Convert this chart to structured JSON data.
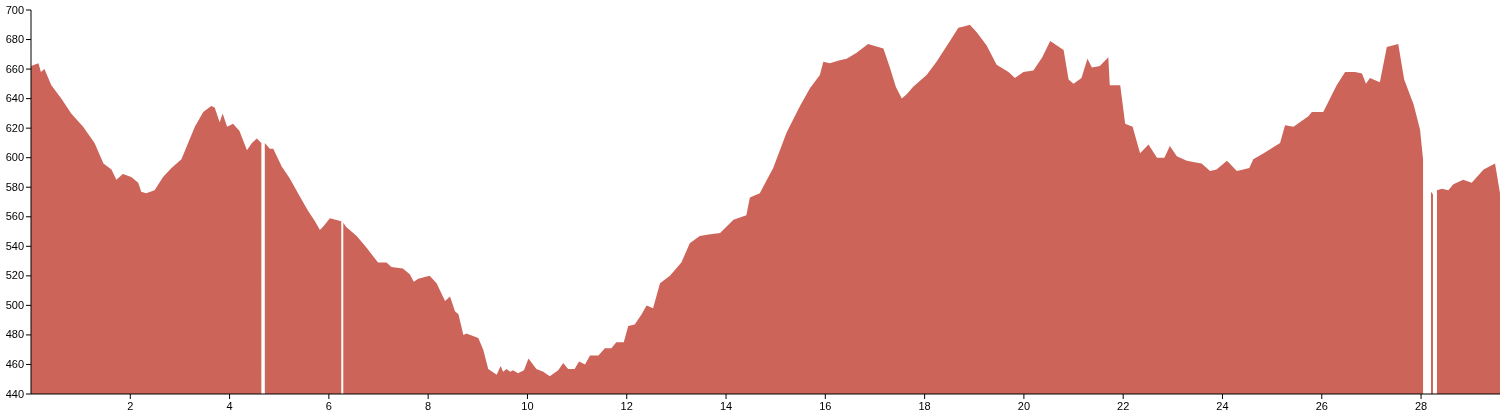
{
  "chart_data": {
    "type": "area",
    "color": "#cd645a",
    "x": [
      0,
      0.15,
      0.2,
      0.27,
      0.41,
      0.61,
      0.81,
      1.05,
      1.28,
      1.46,
      1.62,
      1.72,
      1.85,
      2.02,
      2.16,
      2.22,
      2.32,
      2.49,
      2.66,
      2.83,
      3.03,
      3.3,
      3.47,
      3.63,
      3.7,
      3.8,
      3.86,
      3.95,
      4.07,
      4.2,
      4.35,
      4.45,
      4.55,
      4.64,
      4.675,
      4.71,
      4.81,
      4.88,
      5.05,
      5.21,
      5.41,
      5.58,
      5.72,
      5.82,
      5.9,
      6.02,
      6.25,
      6.27,
      6.29,
      6.35,
      6.56,
      6.76,
      6.99,
      7.16,
      7.26,
      7.49,
      7.63,
      7.71,
      7.8,
      8.03,
      8.17,
      8.34,
      8.44,
      8.54,
      8.61,
      8.71,
      8.77,
      9.01,
      9.11,
      9.21,
      9.38,
      9.46,
      9.51,
      9.58,
      9.65,
      9.71,
      9.81,
      9.93,
      10.02,
      10.18,
      10.32,
      10.45,
      10.62,
      10.72,
      10.82,
      10.95,
      11.04,
      11.16,
      11.26,
      11.43,
      11.56,
      11.69,
      11.79,
      11.94,
      12.03,
      12.16,
      12.3,
      12.4,
      12.53,
      12.67,
      12.87,
      13.1,
      13.27,
      13.47,
      13.65,
      13.88,
      14.15,
      14.41,
      14.48,
      14.68,
      14.95,
      15.22,
      15.49,
      15.69,
      15.89,
      15.96,
      16.09,
      16.29,
      16.43,
      16.63,
      16.86,
      17.17,
      17.3,
      17.42,
      17.54,
      17.64,
      17.77,
      18.04,
      18.24,
      18.51,
      18.68,
      18.81,
      18.91,
      19.05,
      19.25,
      19.45,
      19.69,
      19.82,
      19.99,
      20.19,
      20.37,
      20.53,
      20.8,
      20.9,
      21,
      21.16,
      21.28,
      21.37,
      21.53,
      21.7,
      21.73,
      21.94,
      22.04,
      22.19,
      22.34,
      22.51,
      22.68,
      22.83,
      22.94,
      23.08,
      23.28,
      23.41,
      23.58,
      23.75,
      23.88,
      24.09,
      24.29,
      24.42,
      24.54,
      24.62,
      24.83,
      25.16,
      25.26,
      25.43,
      25.73,
      25.8,
      26.03,
      26.3,
      26.47,
      26.67,
      26.81,
      26.89,
      26.97,
      27.17,
      27.31,
      27.54,
      27.66,
      27.85,
      27.98,
      28.04,
      28.1,
      28.2,
      28.24,
      28.28,
      28.32,
      28.42,
      28.55,
      28.65,
      28.85,
      29.02,
      29.26,
      29.49,
      29.59
    ],
    "values": [
      662,
      664,
      658,
      660,
      649,
      640,
      630,
      621,
      610,
      596,
      592,
      585,
      589,
      587,
      583,
      577,
      576,
      578,
      587,
      593,
      599,
      621,
      631,
      635,
      634,
      624,
      630,
      621,
      623,
      618,
      605,
      610,
      613,
      610,
      null,
      610,
      606,
      606,
      594,
      586,
      574,
      564,
      557,
      551,
      554,
      559,
      557,
      null,
      556,
      553,
      547,
      539,
      529,
      529,
      526,
      525,
      521,
      516,
      518,
      520,
      515,
      503,
      506,
      496,
      494,
      480,
      481,
      478,
      470,
      457,
      453,
      459,
      455,
      457,
      455,
      456,
      454,
      456,
      464,
      457,
      455,
      452,
      456,
      461,
      457,
      457,
      462,
      460,
      466,
      466,
      471,
      471,
      475,
      475,
      486,
      487,
      494,
      500,
      498,
      515,
      520,
      529,
      542,
      547,
      548,
      549,
      558,
      561,
      573,
      576,
      593,
      617,
      635,
      647,
      656,
      665,
      664,
      666,
      667,
      671,
      677,
      674,
      661,
      648,
      640,
      643,
      648,
      656,
      665,
      679,
      688,
      689,
      690,
      685,
      676,
      663,
      658,
      654,
      658,
      659,
      668,
      679,
      673,
      653,
      650,
      654,
      667,
      661,
      662,
      668,
      649,
      649,
      623,
      621,
      603,
      609,
      600,
      600,
      608,
      601,
      598,
      597,
      596,
      591,
      592,
      598,
      591,
      592,
      593,
      599,
      603,
      610,
      622,
      621,
      628,
      631,
      631,
      649,
      658,
      658,
      657,
      650,
      654,
      651,
      675,
      677,
      653,
      636,
      619,
      599,
      null,
      577,
      575,
      null,
      578,
      579,
      578,
      582,
      585,
      583,
      592,
      596,
      576
    ],
    "xlim": [
      0,
      29.59
    ],
    "ylim": [
      440,
      700
    ],
    "xticks": [
      2,
      4,
      6,
      8,
      10,
      12,
      14,
      16,
      18,
      20,
      22,
      24,
      26,
      28
    ],
    "yticks": [
      440,
      460,
      480,
      500,
      520,
      540,
      560,
      580,
      600,
      620,
      640,
      660,
      680,
      700
    ]
  }
}
